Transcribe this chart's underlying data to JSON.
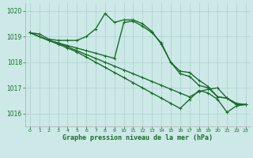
{
  "xlabel": "Graphe pression niveau de la mer (hPa)",
  "xlim": [
    -0.5,
    23.5
  ],
  "ylim": [
    1015.5,
    1020.3
  ],
  "yticks": [
    1016,
    1017,
    1018,
    1019,
    1020
  ],
  "xticks": [
    0,
    1,
    2,
    3,
    4,
    5,
    6,
    7,
    8,
    9,
    10,
    11,
    12,
    13,
    14,
    15,
    16,
    17,
    18,
    19,
    20,
    21,
    22,
    23
  ],
  "bg_color": "#cce9e7",
  "grid_color": "#aacfcd",
  "line_color": "#1a6b2a",
  "line_width": 1.0,
  "marker": "+",
  "marker_size": 3.5,
  "series": [
    [
      1019.15,
      1019.1,
      1018.9,
      1018.85,
      1018.85,
      1018.85,
      1019.0,
      1019.3,
      1019.9,
      1019.55,
      1019.65,
      1019.65,
      1019.5,
      1019.2,
      1018.7,
      1018.0,
      1017.65,
      1017.6,
      1017.3,
      1017.05,
      1016.65,
      1016.6,
      1016.4,
      1016.35
    ],
    [
      1019.15,
      1019.0,
      1018.85,
      1018.75,
      1018.65,
      1018.55,
      1018.45,
      1018.35,
      1018.25,
      1018.15,
      1019.55,
      1019.6,
      1019.4,
      1019.15,
      1018.75,
      1018.0,
      1017.55,
      1017.45,
      1017.1,
      1017.0,
      1016.65,
      1016.6,
      1016.35,
      1016.35
    ],
    [
      1019.15,
      1019.0,
      1018.85,
      1018.75,
      1018.6,
      1018.45,
      1018.3,
      1018.15,
      1018.0,
      1017.85,
      1017.7,
      1017.55,
      1017.4,
      1017.25,
      1017.1,
      1016.95,
      1016.8,
      1016.65,
      1016.85,
      1016.95,
      1017.0,
      1016.6,
      1016.35,
      1016.35
    ],
    [
      1019.15,
      1019.0,
      1018.85,
      1018.7,
      1018.55,
      1018.4,
      1018.2,
      1018.0,
      1017.8,
      1017.6,
      1017.4,
      1017.2,
      1017.0,
      1016.8,
      1016.6,
      1016.4,
      1016.2,
      1016.55,
      1016.9,
      1016.8,
      1016.55,
      1016.05,
      1016.3,
      1016.35
    ]
  ]
}
